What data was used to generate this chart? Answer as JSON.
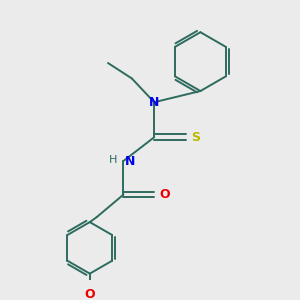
{
  "background_color": "#ebebeb",
  "bond_color": "#2d6b5e",
  "N_color": "#0000ee",
  "S_color": "#bbbb00",
  "O_color": "#ee0000",
  "figsize": [
    3.0,
    3.0
  ],
  "dpi": 100,
  "xlim": [
    0,
    10
  ],
  "ylim": [
    0,
    10
  ]
}
